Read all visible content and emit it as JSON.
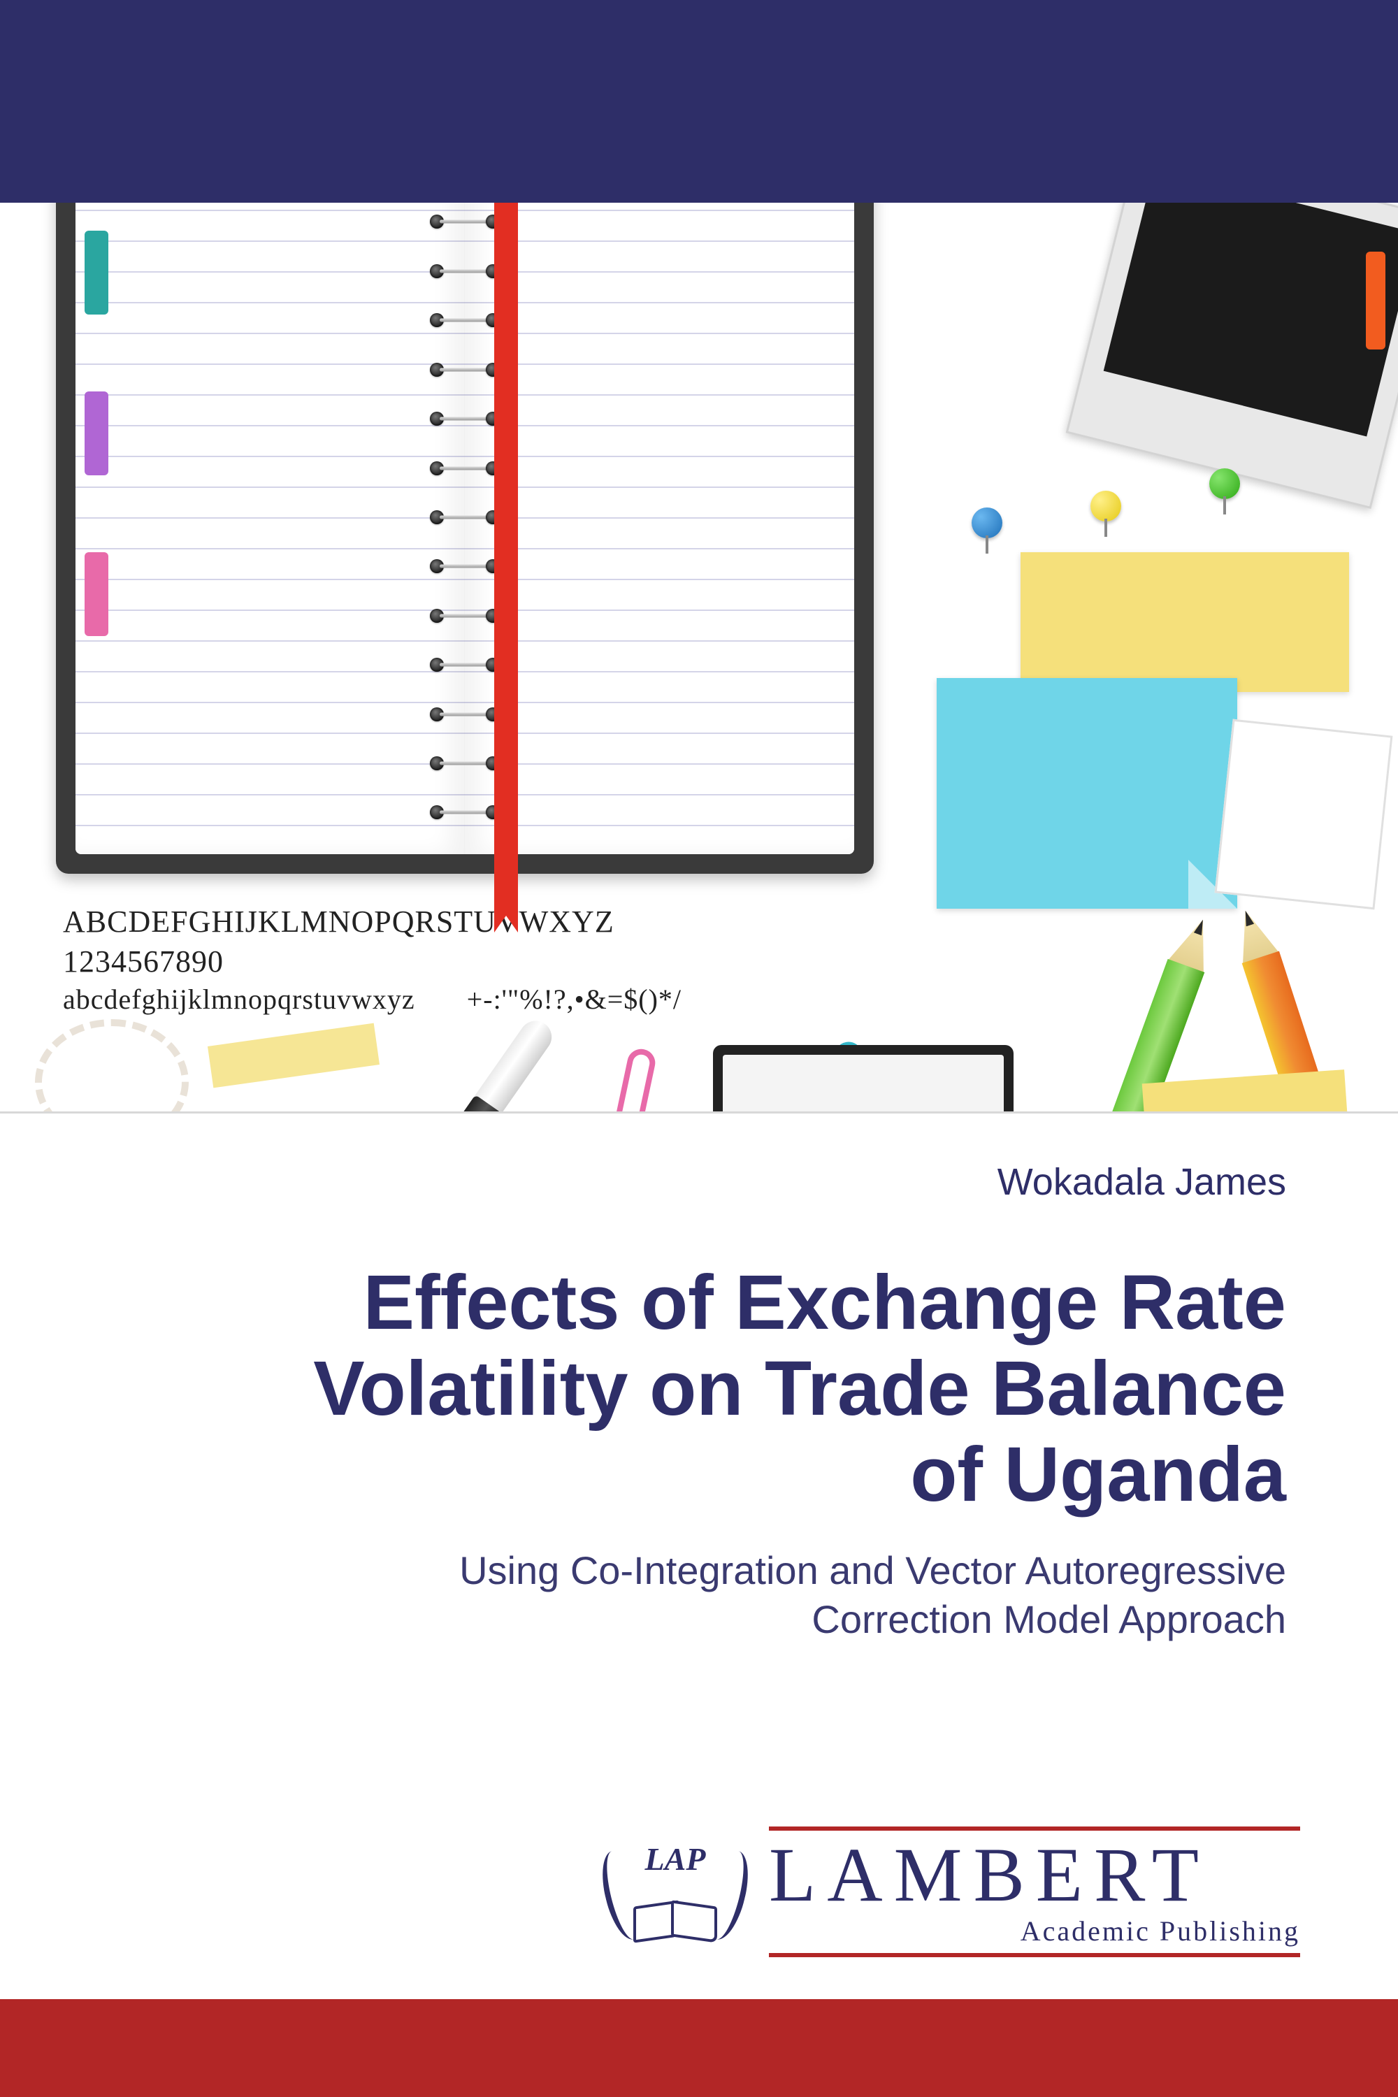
{
  "colors": {
    "navy": "#2e2e68",
    "red": "#b22626",
    "yellow_sticky": "#f5e07b",
    "blue_sticky": "#6fd5e8",
    "ribbon": "#e22e22"
  },
  "alphabet": {
    "upper": "ABCDEFGHIJKLMNOPQRSTUVWXYZ",
    "lower": "abcdefghijklmnopqrstuvwxyz",
    "digits": "1234567890",
    "symbols": "+-:'\"%!?,•&=$()*/"
  },
  "author": "Wokadala James",
  "title_lines": [
    "Effects of Exchange Rate",
    "Volatility on Trade Balance",
    "of Uganda"
  ],
  "subtitle_lines": [
    "Using Co-Integration and Vector Autoregressive",
    "Correction Model Approach"
  ],
  "publisher": {
    "badge": "LAP",
    "name": "LAMBERT",
    "sub": "Academic Publishing"
  }
}
